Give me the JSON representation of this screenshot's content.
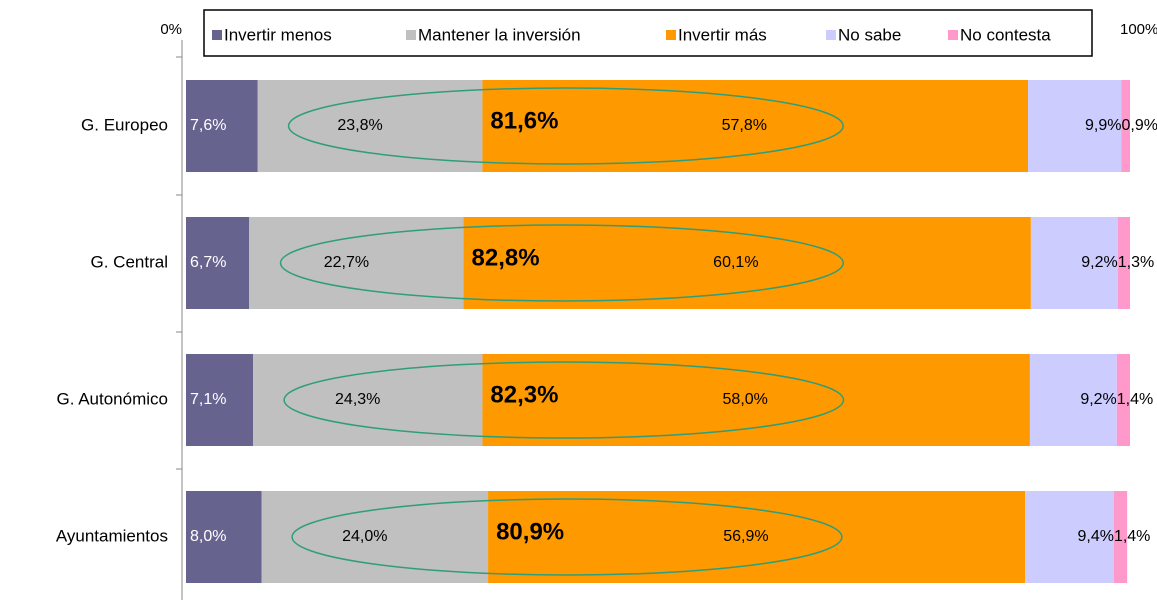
{
  "chart_data": {
    "type": "stacked_barh",
    "categories": [
      "G. Europeo",
      "G. Central",
      "G. Autonómico",
      "Ayuntamientos"
    ],
    "series": [
      {
        "name": "Invertir menos",
        "color": "#66638f",
        "values": [
          7.6,
          6.7,
          7.1,
          8.0
        ],
        "value_labels": [
          "7,6%",
          "6,7%",
          "7,1%",
          "8,0%"
        ]
      },
      {
        "name": "Mantener la inversión",
        "color": "#c0c0c0",
        "values": [
          23.8,
          22.7,
          24.3,
          24.0
        ],
        "value_labels": [
          "23,8%",
          "22,7%",
          "24,3%",
          "24,0%"
        ]
      },
      {
        "name": "Invertir más",
        "color": "#ff9900",
        "values": [
          57.8,
          60.1,
          58.0,
          56.9
        ],
        "value_labels": [
          "57,8%",
          "60,1%",
          "58,0%",
          "56,9%"
        ]
      },
      {
        "name": "No sabe",
        "color": "#ccccff",
        "values": [
          9.9,
          9.2,
          9.2,
          9.4
        ],
        "value_labels": [
          "9,9%",
          "9,2%",
          "9,2%",
          "9,4%"
        ]
      },
      {
        "name": "No contesta",
        "color": "#ff99cc",
        "values": [
          0.9,
          1.3,
          1.4,
          1.4
        ],
        "value_labels": [
          "0,9%",
          "1,3%",
          "1,4%",
          "1,4%"
        ]
      }
    ],
    "annotations": [
      {
        "value": 81.6,
        "label": "81,6%"
      },
      {
        "value": 82.8,
        "label": "82,8%"
      },
      {
        "value": 82.3,
        "label": "82,3%"
      },
      {
        "value": 80.9,
        "label": "80,9%"
      }
    ],
    "ellipse_color": "#2e9e7a",
    "xlim": [
      0,
      100
    ],
    "xticks": [
      {
        "value": 0,
        "label": "0%"
      },
      {
        "value": 100,
        "label": "100%"
      }
    ]
  }
}
